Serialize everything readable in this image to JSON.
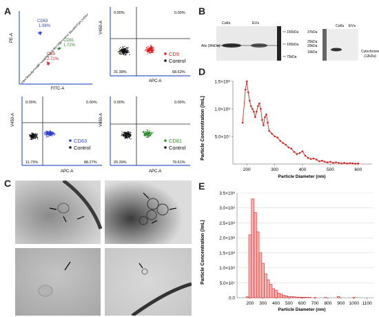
{
  "panels": {
    "A": {
      "letter": "A",
      "dotplot1": {
        "xlabel": "FITC-A",
        "ylabel": "PE-A",
        "gates": [
          {
            "name": "CD63",
            "percent": "1.98%",
            "color": "#2a3fd1"
          },
          {
            "name": "CD81",
            "percent": "1.72%",
            "color": "#2f8a2f"
          },
          {
            "name": "CD9",
            "percent": "2.71%",
            "color": "#d42020"
          }
        ]
      },
      "dotplot2": {
        "xlabel": "APC-A",
        "ylabel": "V450-A",
        "quadrants": {
          "tl": "0.00%",
          "tr": "0.00%",
          "bl": "31.38%",
          "br": "68.62%"
        },
        "legend": [
          {
            "label": "CD9",
            "color": "#d42020"
          },
          {
            "label": "Control",
            "color": "#111111"
          }
        ]
      },
      "dotplot3": {
        "xlabel": "APC-A",
        "ylabel": "V450-A",
        "quadrants": {
          "tl": "0.00%",
          "tr": "0.00%",
          "bl": "11.73%",
          "br": "88.27%"
        },
        "legend": [
          {
            "label": "CD63",
            "color": "#2a3fd1"
          },
          {
            "label": "Control",
            "color": "#111111"
          }
        ]
      },
      "dotplot4": {
        "xlabel": "APC-A",
        "ylabel": "V450-A",
        "quadrants": {
          "tl": "0.00%",
          "tr": "0.00%",
          "bl": "20.39%",
          "br": "79.61%"
        },
        "legend": [
          {
            "label": "CD81",
            "color": "#2f8a2f"
          },
          {
            "label": "Control",
            "color": "#111111"
          }
        ]
      }
    },
    "B": {
      "letter": "B",
      "blot1": {
        "lanes": [
          "Cells",
          "EVs"
        ],
        "protein": "Alix (96kDa)",
        "markers": [
          "150kDa",
          "100kDa",
          "75kDa"
        ]
      },
      "blot2": {
        "lanes": [
          "Cells",
          "EVs"
        ],
        "protein": "Cytochrome C\n(12kDa)",
        "markers": [
          "37kDa",
          "25kDa",
          "20kDa",
          "10kDa"
        ]
      }
    },
    "C": {
      "letter": "C"
    },
    "D": {
      "letter": "D"
    },
    "E": {
      "letter": "E"
    }
  },
  "chart_data": [
    {
      "type": "line",
      "panel": "D",
      "xlabel": "Particle Diameter (nm)",
      "ylabel": "Particle Concentration (/mL)",
      "xlim": [
        150,
        650
      ],
      "ylim": [
        0,
        150000000.0
      ],
      "xticks": [
        200,
        300,
        400,
        500,
        600
      ],
      "yticks": [
        "1.5×10⁸",
        "1.0×10⁸",
        "5.0×10⁷"
      ],
      "yticks_values": [
        150000000.0,
        100000000.0,
        50000000.0
      ],
      "color": "#d42020",
      "x": [
        185,
        195,
        200,
        205,
        210,
        215,
        220,
        225,
        230,
        235,
        240,
        245,
        250,
        255,
        260,
        265,
        270,
        275,
        280,
        290,
        300,
        310,
        320,
        330,
        340,
        350,
        360,
        370,
        380,
        390,
        400,
        410,
        420,
        430,
        440,
        450,
        460,
        470,
        480,
        490,
        500,
        510,
        520,
        530,
        540,
        550,
        560,
        570,
        580,
        590,
        600
      ],
      "y": [
        75000000.0,
        135000000.0,
        150000000.0,
        130000000.0,
        115000000.0,
        105000000.0,
        100000000.0,
        95000000.0,
        85000000.0,
        95000000.0,
        105000000.0,
        110000000.0,
        100000000.0,
        80000000.0,
        70000000.0,
        85000000.0,
        90000000.0,
        75000000.0,
        60000000.0,
        55000000.0,
        50000000.0,
        48000000.0,
        42000000.0,
        38000000.0,
        35000000.0,
        30000000.0,
        28000000.0,
        22000000.0,
        18000000.0,
        20000000.0,
        23000000.0,
        15000000.0,
        11000000.0,
        9000000.0,
        10000000.0,
        8000000.0,
        5000000.0,
        6000000.0,
        4000000.0,
        3000000.0,
        4000000.0,
        2000000.0,
        3000000.0,
        2000000.0,
        1000000.0,
        2000000.0,
        1000000.0,
        1500000.0,
        1000000.0,
        500000.0,
        1000000.0
      ]
    },
    {
      "type": "bar",
      "panel": "E",
      "xlabel": "Particle Diameter (nm)",
      "ylabel": "Particle Concentration (/mL)",
      "xlim": [
        100,
        1150
      ],
      "ylim": [
        0,
        350000000.0
      ],
      "xticks": [
        200,
        300,
        400,
        500,
        600,
        700,
        800,
        900,
        1000,
        1100
      ],
      "yticks": [
        "3.5×10⁸",
        "3.0×10⁸",
        "2.5×10⁸",
        "2.0×10⁸",
        "1.5×10⁸",
        "1.0×10⁸",
        "5.0×10⁷",
        "0.0"
      ],
      "yticks_values": [
        350000000.0,
        300000000.0,
        250000000.0,
        200000000.0,
        150000000.0,
        100000000.0,
        50000000.0,
        0
      ],
      "color": "#d42020",
      "bin_width": 20,
      "x": [
        180,
        200,
        220,
        240,
        260,
        280,
        300,
        320,
        340,
        360,
        380,
        400,
        420,
        440,
        460,
        480,
        500,
        520,
        540,
        560,
        580,
        600,
        620,
        640,
        660,
        700,
        780,
        880,
        1000
      ],
      "y": [
        3000000.0,
        210000000.0,
        330000000.0,
        285000000.0,
        220000000.0,
        150000000.0,
        115000000.0,
        80000000.0,
        60000000.0,
        45000000.0,
        30000000.0,
        25000000.0,
        15000000.0,
        12000000.0,
        8000000.0,
        6000000.0,
        4000000.0,
        4000000.0,
        3000000.0,
        2000000.0,
        2000000.0,
        1500000.0,
        1500000.0,
        1000000.0,
        1000000.0,
        800000.0,
        800000.0,
        4000000.0,
        1000000.0
      ]
    }
  ]
}
